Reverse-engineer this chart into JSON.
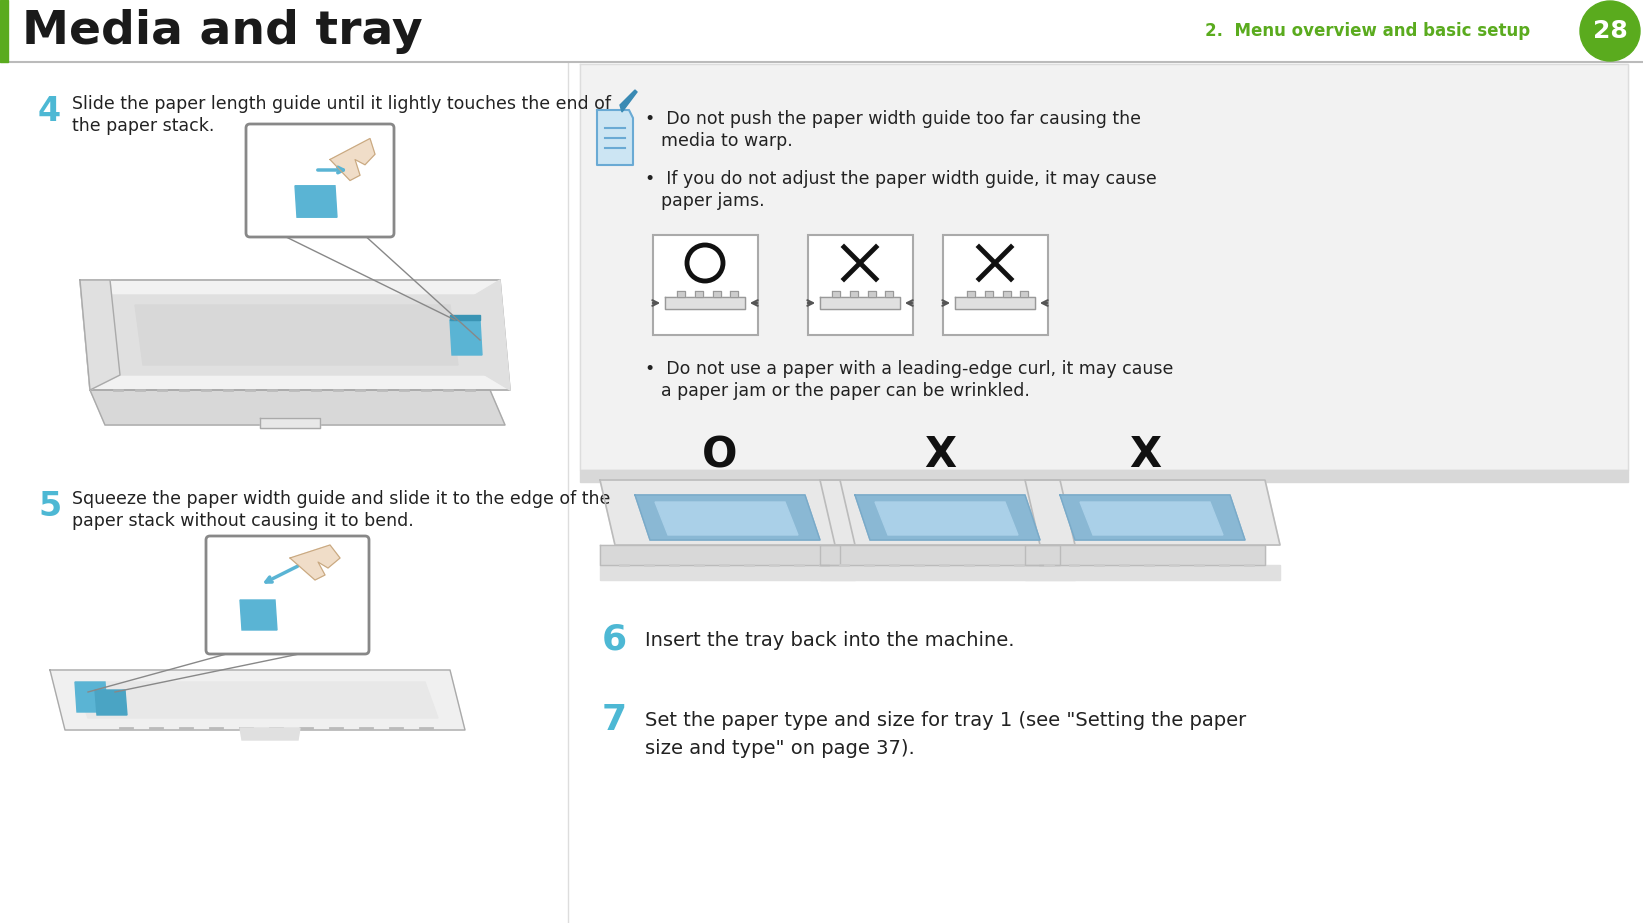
{
  "title": "Media and tray",
  "chapter": "2.  Menu overview and basic setup",
  "page_num": "28",
  "title_color": "#1a1a1a",
  "chapter_color": "#5aab1e",
  "page_bg": "#ffffff",
  "header_bar_color": "#5aab1e",
  "divider_color": "#cccccc",
  "step4_num": "4",
  "step4_text1": "Slide the paper length guide until it lightly touches the end of",
  "step4_text2": "the paper stack.",
  "step5_num": "5",
  "step5_text1": "Squeeze the paper width guide and slide it to the edge of the",
  "step5_text2": "paper stack without causing it to bend.",
  "step_num_color": "#4db8d4",
  "bullet1": "Do not push the paper width guide too far causing the\nmedia to warp.",
  "bullet2": "If you do not adjust the paper width guide, it may cause\npaper jams.",
  "bullet3": "Do not use a paper with a leading-edge curl, it may cause\na paper jam or the paper can be wrinkled.",
  "step6_num": "6",
  "step6_text": "Insert the tray back into the machine.",
  "step7_num": "7",
  "step7_text1": "Set the paper type and size for tray 1 (see \"Setting the paper",
  "step7_text2": "size and type\" on page 37).",
  "step67_num_color": "#4db8d4",
  "body_text_color": "#222222",
  "note_bg": "#f0f0f0",
  "note_border": "#cccccc",
  "tray_paper_color": "#b8cfe0",
  "tray_body_color": "#e8e8e8",
  "tray_outline_color": "#999999"
}
